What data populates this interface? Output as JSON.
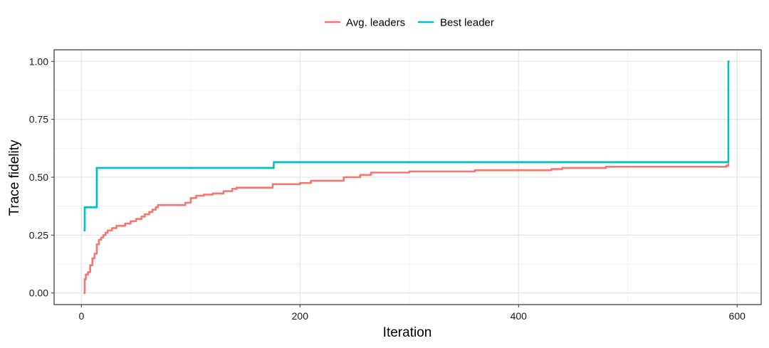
{
  "chart_data": {
    "type": "line",
    "title": "",
    "xlabel": "Iteration",
    "ylabel": "Trace fidelity",
    "xlim": [
      -25,
      622
    ],
    "ylim": [
      -0.05,
      1.05
    ],
    "x_ticks": [
      0,
      200,
      400,
      600
    ],
    "x_tick_labels": [
      "0",
      "200",
      "400",
      "600"
    ],
    "y_ticks": [
      0,
      0.25,
      0.5,
      0.75,
      1.0
    ],
    "y_tick_labels": [
      "0.00",
      "0.25",
      "0.50",
      "0.75",
      "1.00"
    ],
    "grid": true,
    "legend_position": "top",
    "series": [
      {
        "name": "Avg. leaders",
        "color": "#F8766D",
        "step": true,
        "x": [
          2,
          3,
          4,
          6,
          8,
          10,
          12,
          14,
          16,
          18,
          20,
          22,
          24,
          28,
          32,
          40,
          45,
          50,
          55,
          58,
          62,
          65,
          68,
          70,
          80,
          95,
          100,
          105,
          112,
          120,
          130,
          138,
          142,
          150,
          175,
          200,
          210,
          240,
          255,
          265,
          300,
          350,
          360,
          430,
          440,
          480,
          560,
          590,
          592
        ],
        "y": [
          0.0,
          0.06,
          0.08,
          0.09,
          0.12,
          0.15,
          0.17,
          0.21,
          0.23,
          0.24,
          0.25,
          0.26,
          0.27,
          0.28,
          0.29,
          0.3,
          0.31,
          0.32,
          0.33,
          0.34,
          0.35,
          0.36,
          0.37,
          0.38,
          0.38,
          0.39,
          0.41,
          0.42,
          0.425,
          0.43,
          0.44,
          0.45,
          0.455,
          0.455,
          0.47,
          0.475,
          0.485,
          0.5,
          0.51,
          0.52,
          0.525,
          0.525,
          0.53,
          0.535,
          0.54,
          0.545,
          0.545,
          0.55,
          0.56
        ]
      },
      {
        "name": "Best leader",
        "color": "#00BFC4",
        "step": true,
        "x": [
          2,
          3,
          14,
          176,
          592,
          593
        ],
        "y": [
          0.27,
          0.37,
          0.54,
          0.565,
          1.0,
          1.0
        ]
      }
    ]
  }
}
